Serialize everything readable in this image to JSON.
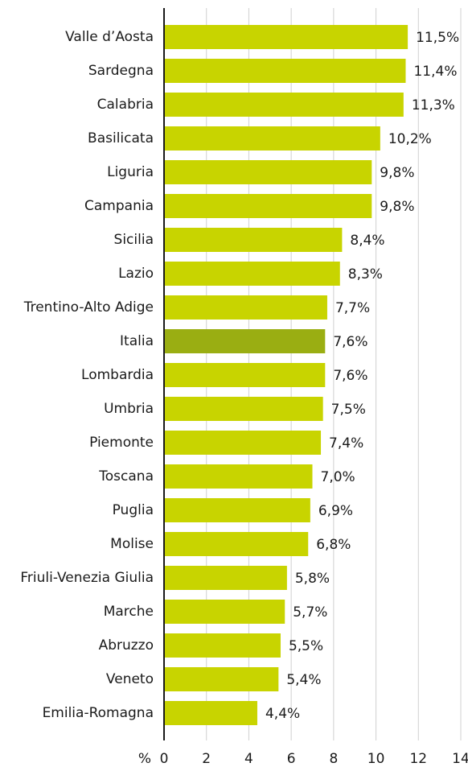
{
  "chart_data": {
    "type": "hbar",
    "x_label": "%",
    "categories": [
      "Valle d’Aosta",
      "Sardegna",
      "Calabria",
      "Basilicata",
      "Liguria",
      "Campania",
      "Sicilia",
      "Lazio",
      "Trentino-Alto Adige",
      "Italia",
      "Lombardia",
      "Umbria",
      "Piemonte",
      "Toscana",
      "Puglia",
      "Molise",
      "Friuli-Venezia Giulia",
      "Marche",
      "Abruzzo",
      "Veneto",
      "Emilia-Romagna"
    ],
    "values": [
      11.5,
      11.4,
      11.3,
      10.2,
      9.8,
      9.8,
      8.4,
      8.3,
      7.7,
      7.6,
      7.6,
      7.5,
      7.4,
      7.0,
      6.9,
      6.8,
      5.8,
      5.7,
      5.5,
      5.4,
      4.4
    ],
    "value_labels": [
      "11,5%",
      "11,4%",
      "11,3%",
      "10,2%",
      "9,8%",
      "9,8%",
      "8,4%",
      "8,3%",
      "7,7%",
      "7,6%",
      "7,6%",
      "7,5%",
      "7,4%",
      "7,0%",
      "6,9%",
      "6,8%",
      "5,8%",
      "5,7%",
      "5,5%",
      "5,4%",
      "4,4%"
    ],
    "colors": [
      "#c8d400",
      "#c8d400",
      "#c8d400",
      "#c8d400",
      "#c8d400",
      "#c8d400",
      "#c8d400",
      "#c8d400",
      "#c8d400",
      "#9aae12",
      "#c8d400",
      "#c8d400",
      "#c8d400",
      "#c8d400",
      "#c8d400",
      "#c8d400",
      "#c8d400",
      "#c8d400",
      "#c8d400",
      "#c8d400",
      "#c8d400"
    ],
    "xlim": [
      0,
      14
    ],
    "xticks": [
      0,
      2,
      4,
      6,
      8,
      10,
      12,
      14
    ],
    "grid": true
  }
}
